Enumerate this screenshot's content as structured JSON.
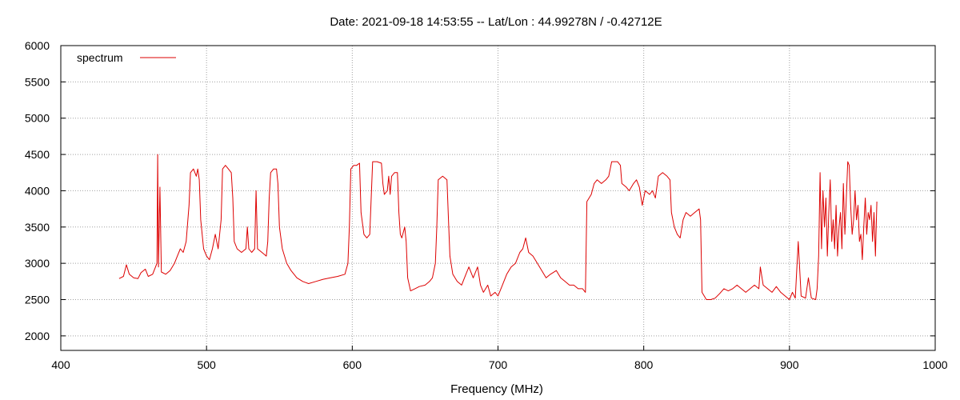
{
  "chart_data": {
    "type": "line",
    "title": "Date: 2021-09-18 14:53:55  --  Lat/Lon : 44.99278N / -0.42712E",
    "xlabel": "Frequency (MHz)",
    "ylabel": "",
    "xlim": [
      400,
      1000
    ],
    "ylim": [
      1800,
      6000
    ],
    "x_ticks": [
      400,
      500,
      600,
      700,
      800,
      900,
      1000
    ],
    "y_ticks": [
      2000,
      2500,
      3000,
      3500,
      4000,
      4500,
      5000,
      5500,
      6000
    ],
    "grid": true,
    "legend_position": "top-left",
    "series_color": "#dd0000",
    "series": [
      {
        "name": "spectrum",
        "points": [
          [
            440,
            2790
          ],
          [
            443,
            2820
          ],
          [
            445,
            2980
          ],
          [
            447,
            2850
          ],
          [
            450,
            2800
          ],
          [
            453,
            2790
          ],
          [
            455,
            2870
          ],
          [
            458,
            2920
          ],
          [
            460,
            2820
          ],
          [
            463,
            2850
          ],
          [
            465,
            2950
          ],
          [
            466,
            3000
          ],
          [
            466.5,
            4500
          ],
          [
            467,
            2950
          ],
          [
            468,
            4050
          ],
          [
            469,
            2880
          ],
          [
            472,
            2850
          ],
          [
            475,
            2900
          ],
          [
            478,
            3000
          ],
          [
            480,
            3100
          ],
          [
            482,
            3200
          ],
          [
            484,
            3150
          ],
          [
            486,
            3300
          ],
          [
            488,
            3800
          ],
          [
            489,
            4250
          ],
          [
            491,
            4300
          ],
          [
            493,
            4200
          ],
          [
            494,
            4300
          ],
          [
            495,
            4150
          ],
          [
            496,
            3600
          ],
          [
            498,
            3200
          ],
          [
            500,
            3100
          ],
          [
            502,
            3050
          ],
          [
            504,
            3200
          ],
          [
            506,
            3400
          ],
          [
            508,
            3200
          ],
          [
            510,
            3600
          ],
          [
            511,
            4300
          ],
          [
            513,
            4350
          ],
          [
            515,
            4300
          ],
          [
            517,
            4250
          ],
          [
            518,
            3900
          ],
          [
            519,
            3300
          ],
          [
            521,
            3200
          ],
          [
            524,
            3150
          ],
          [
            527,
            3200
          ],
          [
            528,
            3500
          ],
          [
            529,
            3200
          ],
          [
            531,
            3150
          ],
          [
            533,
            3200
          ],
          [
            534,
            4000
          ],
          [
            535,
            3200
          ],
          [
            538,
            3150
          ],
          [
            541,
            3100
          ],
          [
            542,
            3300
          ],
          [
            543,
            3900
          ],
          [
            544,
            4250
          ],
          [
            546,
            4300
          ],
          [
            548,
            4300
          ],
          [
            549,
            4100
          ],
          [
            550,
            3500
          ],
          [
            552,
            3200
          ],
          [
            555,
            3000
          ],
          [
            558,
            2900
          ],
          [
            562,
            2800
          ],
          [
            566,
            2750
          ],
          [
            570,
            2720
          ],
          [
            575,
            2750
          ],
          [
            580,
            2780
          ],
          [
            585,
            2800
          ],
          [
            590,
            2820
          ],
          [
            595,
            2850
          ],
          [
            597,
            3000
          ],
          [
            598,
            3500
          ],
          [
            599,
            4300
          ],
          [
            601,
            4350
          ],
          [
            603,
            4350
          ],
          [
            605,
            4380
          ],
          [
            606,
            3700
          ],
          [
            608,
            3400
          ],
          [
            610,
            3350
          ],
          [
            612,
            3400
          ],
          [
            613,
            3900
          ],
          [
            614,
            4400
          ],
          [
            617,
            4400
          ],
          [
            620,
            4380
          ],
          [
            621,
            4100
          ],
          [
            622,
            3950
          ],
          [
            624,
            4000
          ],
          [
            625,
            4200
          ],
          [
            626,
            3950
          ],
          [
            627,
            4200
          ],
          [
            629,
            4250
          ],
          [
            631,
            4250
          ],
          [
            632,
            3700
          ],
          [
            633,
            3400
          ],
          [
            634,
            3350
          ],
          [
            636,
            3500
          ],
          [
            637,
            3300
          ],
          [
            638,
            2800
          ],
          [
            640,
            2620
          ],
          [
            643,
            2650
          ],
          [
            646,
            2680
          ],
          [
            650,
            2700
          ],
          [
            653,
            2750
          ],
          [
            655,
            2800
          ],
          [
            657,
            3000
          ],
          [
            658,
            3500
          ],
          [
            659,
            4150
          ],
          [
            662,
            4200
          ],
          [
            665,
            4150
          ],
          [
            666,
            3600
          ],
          [
            667,
            3100
          ],
          [
            669,
            2850
          ],
          [
            672,
            2750
          ],
          [
            675,
            2700
          ],
          [
            678,
            2850
          ],
          [
            680,
            2950
          ],
          [
            683,
            2800
          ],
          [
            686,
            2950
          ],
          [
            688,
            2700
          ],
          [
            690,
            2600
          ],
          [
            693,
            2700
          ],
          [
            695,
            2550
          ],
          [
            698,
            2600
          ],
          [
            700,
            2550
          ],
          [
            703,
            2700
          ],
          [
            706,
            2850
          ],
          [
            709,
            2950
          ],
          [
            712,
            3000
          ],
          [
            715,
            3150
          ],
          [
            717,
            3200
          ],
          [
            719,
            3350
          ],
          [
            721,
            3150
          ],
          [
            724,
            3100
          ],
          [
            727,
            3000
          ],
          [
            730,
            2900
          ],
          [
            733,
            2800
          ],
          [
            736,
            2850
          ],
          [
            740,
            2900
          ],
          [
            743,
            2800
          ],
          [
            746,
            2750
          ],
          [
            749,
            2700
          ],
          [
            752,
            2700
          ],
          [
            755,
            2650
          ],
          [
            758,
            2650
          ],
          [
            760,
            2600
          ],
          [
            761,
            3850
          ],
          [
            764,
            3950
          ],
          [
            766,
            4100
          ],
          [
            768,
            4150
          ],
          [
            771,
            4100
          ],
          [
            774,
            4150
          ],
          [
            776,
            4200
          ],
          [
            778,
            4400
          ],
          [
            782,
            4400
          ],
          [
            784,
            4350
          ],
          [
            785,
            4100
          ],
          [
            788,
            4050
          ],
          [
            790,
            4000
          ],
          [
            793,
            4100
          ],
          [
            795,
            4150
          ],
          [
            797,
            4050
          ],
          [
            799,
            3800
          ],
          [
            801,
            4000
          ],
          [
            804,
            3950
          ],
          [
            806,
            4000
          ],
          [
            808,
            3900
          ],
          [
            810,
            4200
          ],
          [
            813,
            4250
          ],
          [
            816,
            4200
          ],
          [
            818,
            4150
          ],
          [
            819,
            3700
          ],
          [
            821,
            3500
          ],
          [
            823,
            3400
          ],
          [
            825,
            3350
          ],
          [
            827,
            3600
          ],
          [
            829,
            3700
          ],
          [
            832,
            3650
          ],
          [
            835,
            3700
          ],
          [
            838,
            3750
          ],
          [
            839,
            3600
          ],
          [
            840,
            2600
          ],
          [
            843,
            2500
          ],
          [
            846,
            2500
          ],
          [
            849,
            2520
          ],
          [
            852,
            2580
          ],
          [
            855,
            2650
          ],
          [
            858,
            2620
          ],
          [
            861,
            2650
          ],
          [
            864,
            2700
          ],
          [
            867,
            2650
          ],
          [
            870,
            2600
          ],
          [
            873,
            2650
          ],
          [
            876,
            2700
          ],
          [
            879,
            2650
          ],
          [
            880,
            2950
          ],
          [
            882,
            2700
          ],
          [
            885,
            2650
          ],
          [
            888,
            2600
          ],
          [
            891,
            2680
          ],
          [
            894,
            2600
          ],
          [
            897,
            2550
          ],
          [
            900,
            2500
          ],
          [
            902,
            2600
          ],
          [
            904,
            2520
          ],
          [
            906,
            3300
          ],
          [
            908,
            2550
          ],
          [
            911,
            2520
          ],
          [
            913,
            2800
          ],
          [
            915,
            2520
          ],
          [
            918,
            2500
          ],
          [
            919,
            2650
          ],
          [
            920,
            3100
          ],
          [
            921,
            4250
          ],
          [
            922,
            3200
          ],
          [
            923,
            4000
          ],
          [
            924,
            3500
          ],
          [
            925,
            3900
          ],
          [
            926,
            3100
          ],
          [
            927,
            3700
          ],
          [
            928,
            4150
          ],
          [
            929,
            3300
          ],
          [
            930,
            3600
          ],
          [
            931,
            3200
          ],
          [
            932,
            3800
          ],
          [
            933,
            3100
          ],
          [
            934,
            3500
          ],
          [
            935,
            3700
          ],
          [
            936,
            3200
          ],
          [
            937,
            4100
          ],
          [
            938,
            3400
          ],
          [
            939,
            3900
          ],
          [
            940,
            4400
          ],
          [
            941,
            4350
          ],
          [
            942,
            3800
          ],
          [
            943,
            3400
          ],
          [
            944,
            3600
          ],
          [
            945,
            4000
          ],
          [
            946,
            3600
          ],
          [
            947,
            3800
          ],
          [
            948,
            3300
          ],
          [
            949,
            3400
          ],
          [
            950,
            3050
          ],
          [
            951,
            3500
          ],
          [
            952,
            3900
          ],
          [
            953,
            3400
          ],
          [
            954,
            3700
          ],
          [
            955,
            3600
          ],
          [
            956,
            3800
          ],
          [
            957,
            3300
          ],
          [
            958,
            3700
          ],
          [
            959,
            3100
          ],
          [
            960,
            3850
          ]
        ]
      }
    ]
  }
}
